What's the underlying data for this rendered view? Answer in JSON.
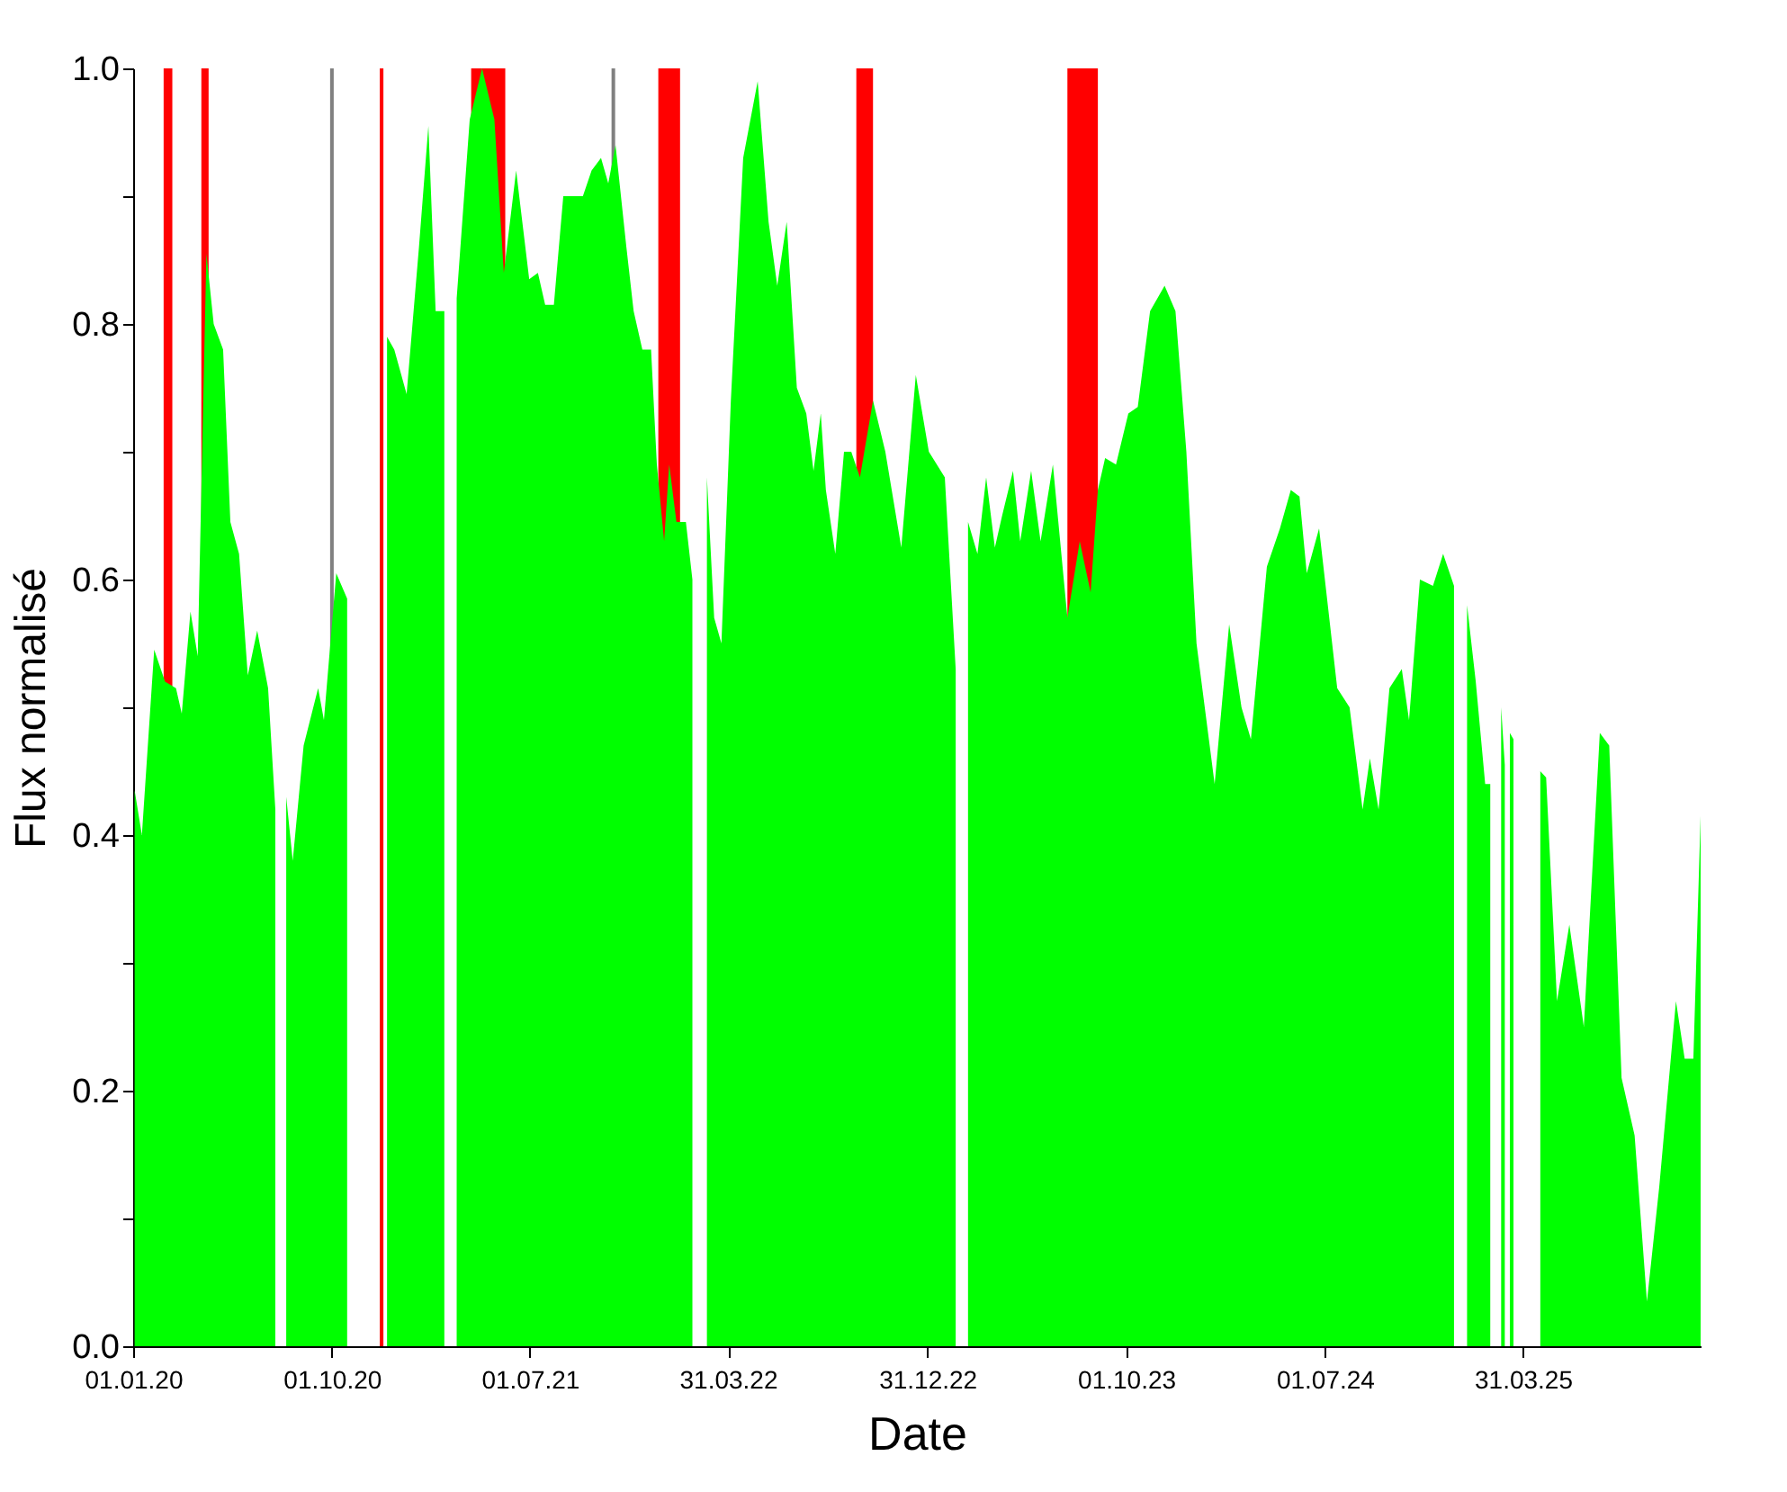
{
  "chart_data": {
    "type": "area",
    "xlabel": "Date",
    "ylabel": "Flux normalisé",
    "grid": false,
    "xlim": [
      "2020-01-01",
      "2025-12-01"
    ],
    "ylim": [
      0,
      1
    ],
    "xticks": [
      {
        "value": "2020-01-01",
        "label": "01.01.20"
      },
      {
        "value": "2020-10-01",
        "label": "01.10.20"
      },
      {
        "value": "2021-07-01",
        "label": "01.07.21"
      },
      {
        "value": "2022-03-31",
        "label": "31.03.22"
      },
      {
        "value": "2022-12-31",
        "label": "31.12.22"
      },
      {
        "value": "2023-10-01",
        "label": "01.10.23"
      },
      {
        "value": "2024-07-01",
        "label": "01.07.24"
      },
      {
        "value": "2025-03-31",
        "label": "31.03.25"
      }
    ],
    "yticks": [
      {
        "value": 0,
        "label": "0.0"
      },
      {
        "value": 0.1,
        "label": null
      },
      {
        "value": 0.2,
        "label": "0.2"
      },
      {
        "value": 0.3,
        "label": null
      },
      {
        "value": 0.4,
        "label": "0.4"
      },
      {
        "value": 0.5,
        "label": null
      },
      {
        "value": 0.6,
        "label": "0.6"
      },
      {
        "value": 0.7,
        "label": null
      },
      {
        "value": 0.8,
        "label": "0.8"
      },
      {
        "value": 0.9,
        "label": null
      },
      {
        "value": 1.0,
        "label": "1.0"
      }
    ],
    "bands": [
      {
        "axis": "x",
        "from": "2020-02-12",
        "to": "2020-02-24",
        "color": "#ff0000"
      },
      {
        "axis": "x",
        "from": "2020-04-04",
        "to": "2020-04-14",
        "color": "#ff0000"
      },
      {
        "axis": "x",
        "from": "2020-12-06",
        "to": "2020-12-11",
        "color": "#ff0000"
      },
      {
        "axis": "x",
        "from": "2021-04-11",
        "to": "2021-05-28",
        "color": "#ff0000"
      },
      {
        "axis": "x",
        "from": "2021-12-25",
        "to": "2022-01-24",
        "color": "#ff0000"
      },
      {
        "axis": "x",
        "from": "2022-09-24",
        "to": "2022-10-17",
        "color": "#ff0000"
      },
      {
        "axis": "x",
        "from": "2023-07-12",
        "to": "2023-08-23",
        "color": "#ff0000"
      }
    ],
    "ref_lines": [
      {
        "axis": "x",
        "value": "2020-10-01",
        "color": "#808080"
      },
      {
        "axis": "x",
        "value": "2021-10-24",
        "color": "#808080"
      }
    ],
    "series": [
      {
        "color": "#00ff00",
        "x": [
          "2020-01-03",
          "2020-01-13",
          "2020-01-30",
          "2020-02-14",
          "2020-02-29",
          "2020-03-08",
          "2020-03-20",
          "2020-03-30",
          "2020-04-11",
          "2020-04-21",
          "2020-05-04",
          "2020-05-14",
          "2020-05-26",
          "2020-06-07",
          "2020-06-20",
          "2020-07-05",
          "2020-07-15",
          "2020-07-17",
          "2020-07-30",
          "2020-08-08",
          "2020-08-23",
          "2020-09-12",
          "2020-09-20",
          "2020-10-07",
          "2020-10-22",
          "2020-10-24",
          "2020-12-16",
          "2020-12-26",
          "2021-01-12",
          "2021-01-29",
          "2021-02-11",
          "2021-02-21",
          "2021-03-05",
          "2021-03-15",
          "2021-03-22",
          "2021-04-09",
          "2021-04-26",
          "2021-05-13",
          "2021-05-26",
          "2021-06-12",
          "2021-06-30",
          "2021-07-12",
          "2021-07-22",
          "2021-08-03",
          "2021-08-16",
          "2021-09-02",
          "2021-09-12",
          "2021-09-24",
          "2021-10-07",
          "2021-10-17",
          "2021-10-27",
          "2021-11-11",
          "2021-11-21",
          "2021-12-03",
          "2021-12-15",
          "2021-12-23",
          "2022-01-02",
          "2022-01-09",
          "2022-01-19",
          "2022-02-01",
          "2022-02-10",
          "2022-02-18",
          "2022-03-02",
          "2022-03-12",
          "2022-03-22",
          "2022-04-04",
          "2022-04-21",
          "2022-05-11",
          "2022-05-26",
          "2022-06-07",
          "2022-06-20",
          "2022-07-04",
          "2022-07-17",
          "2022-07-27",
          "2022-08-06",
          "2022-08-13",
          "2022-08-26",
          "2022-09-07",
          "2022-09-17",
          "2022-09-29",
          "2022-10-17",
          "2022-11-03",
          "2022-11-25",
          "2022-12-15",
          "2023-01-02",
          "2023-01-24",
          "2023-02-08",
          "2023-02-18",
          "2023-02-25",
          "2023-03-10",
          "2023-03-22",
          "2023-04-03",
          "2023-04-13",
          "2023-04-28",
          "2023-05-08",
          "2023-05-23",
          "2023-06-05",
          "2023-06-22",
          "2023-07-12",
          "2023-07-29",
          "2023-08-13",
          "2023-08-23",
          "2023-09-02",
          "2023-09-17",
          "2023-10-04",
          "2023-10-17",
          "2023-11-03",
          "2023-11-23",
          "2023-12-08",
          "2023-12-23",
          "2024-01-06",
          "2024-01-31",
          "2024-02-20",
          "2024-03-08",
          "2024-03-21",
          "2024-04-12",
          "2024-04-30",
          "2024-05-15",
          "2024-05-27",
          "2024-06-06",
          "2024-06-23",
          "2024-07-18",
          "2024-08-04",
          "2024-08-22",
          "2024-09-01",
          "2024-09-13",
          "2024-09-28",
          "2024-10-15",
          "2024-10-25",
          "2024-11-09",
          "2024-11-27",
          "2024-12-11",
          "2024-12-26",
          "2025-01-03",
          "2025-01-13",
          "2025-01-25",
          "2025-02-07",
          "2025-02-14",
          "2025-02-19",
          "2025-03-01",
          "2025-03-06",
          "2025-03-08",
          "2025-03-13",
          "2025-03-18",
          "2025-03-23",
          "2025-04-24",
          "2025-05-02",
          "2025-05-17",
          "2025-06-03",
          "2025-06-23",
          "2025-07-15",
          "2025-07-28",
          "2025-08-14",
          "2025-09-01",
          "2025-09-18",
          "2025-10-05",
          "2025-10-28",
          "2025-11-09",
          "2025-11-21",
          "2025-12-01"
        ],
        "values": [
          0.435,
          0.4,
          0.545,
          0.52,
          0.515,
          0.495,
          0.575,
          0.54,
          0.855,
          0.8,
          0.78,
          0.645,
          0.62,
          0.525,
          0.56,
          0.515,
          0.42,
          null,
          0.43,
          0.38,
          0.47,
          0.515,
          0.49,
          0.605,
          0.585,
          null,
          0.79,
          0.78,
          0.745,
          0.86,
          0.955,
          0.81,
          0.81,
          null,
          0.82,
          0.96,
          1.0,
          0.96,
          0.84,
          0.92,
          0.835,
          0.84,
          0.815,
          0.815,
          0.9,
          0.9,
          0.9,
          0.92,
          0.93,
          0.91,
          0.94,
          0.86,
          0.81,
          0.78,
          0.78,
          0.69,
          0.63,
          0.69,
          0.645,
          0.645,
          0.6,
          null,
          0.68,
          0.57,
          0.55,
          0.74,
          0.93,
          0.99,
          0.88,
          0.83,
          0.88,
          0.75,
          0.73,
          0.685,
          0.73,
          0.67,
          0.62,
          0.7,
          0.7,
          0.68,
          0.74,
          0.7,
          0.625,
          0.76,
          0.7,
          0.68,
          0.53,
          null,
          0.645,
          0.62,
          0.68,
          0.625,
          0.65,
          0.685,
          0.63,
          0.685,
          0.63,
          0.69,
          0.57,
          0.63,
          0.59,
          0.67,
          0.695,
          0.69,
          0.73,
          0.735,
          0.81,
          0.83,
          0.81,
          0.7,
          0.55,
          0.44,
          0.565,
          0.5,
          0.475,
          0.61,
          0.64,
          0.67,
          0.665,
          0.605,
          0.64,
          0.515,
          0.5,
          0.42,
          0.46,
          0.42,
          0.515,
          0.53,
          0.49,
          0.6,
          0.595,
          0.62,
          0.595,
          null,
          0.58,
          0.52,
          0.44,
          0.44,
          null,
          0.5,
          0.455,
          null,
          0.48,
          0.475,
          null,
          0.45,
          0.445,
          0.27,
          0.33,
          0.25,
          0.48,
          0.47,
          0.21,
          0.165,
          0.035,
          0.125,
          0.27,
          0.225,
          0.225,
          0.415
        ]
      }
    ]
  }
}
